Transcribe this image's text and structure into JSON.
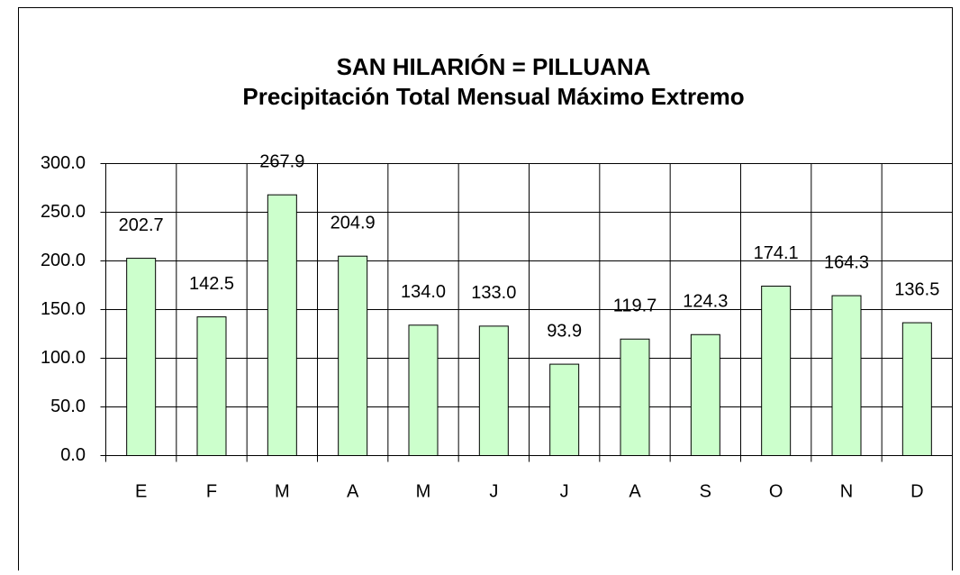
{
  "chart_data": {
    "type": "bar",
    "title": "SAN HILARIÓN = PILLUANA",
    "subtitle": "Precipitación Total Mensual Máximo Extremo",
    "categories": [
      "E",
      "F",
      "M",
      "A",
      "M",
      "J",
      "J",
      "A",
      "S",
      "O",
      "N",
      "D"
    ],
    "values": [
      202.7,
      142.5,
      267.9,
      204.9,
      134,
      133,
      93.9,
      119.7,
      124.3,
      174.1,
      164.3,
      136.5
    ],
    "value_labels": [
      "202.7",
      "142.5",
      "267.9",
      "204.9",
      "134.0",
      "133.0",
      "93.9",
      "119.7",
      "124.3",
      "174.1",
      "164.3",
      "136.5"
    ],
    "color": "#ccffcc",
    "ylim": [
      0,
      300
    ],
    "yticks": [
      {
        "value": 0,
        "label": "0.0"
      },
      {
        "value": 50,
        "label": "50.0"
      },
      {
        "value": 100,
        "label": "100.0"
      },
      {
        "value": 150,
        "label": "150.0"
      },
      {
        "value": 200,
        "label": "200.0"
      },
      {
        "value": 250,
        "label": "250.0"
      },
      {
        "value": 300,
        "label": "300.0"
      }
    ],
    "grid": true
  }
}
